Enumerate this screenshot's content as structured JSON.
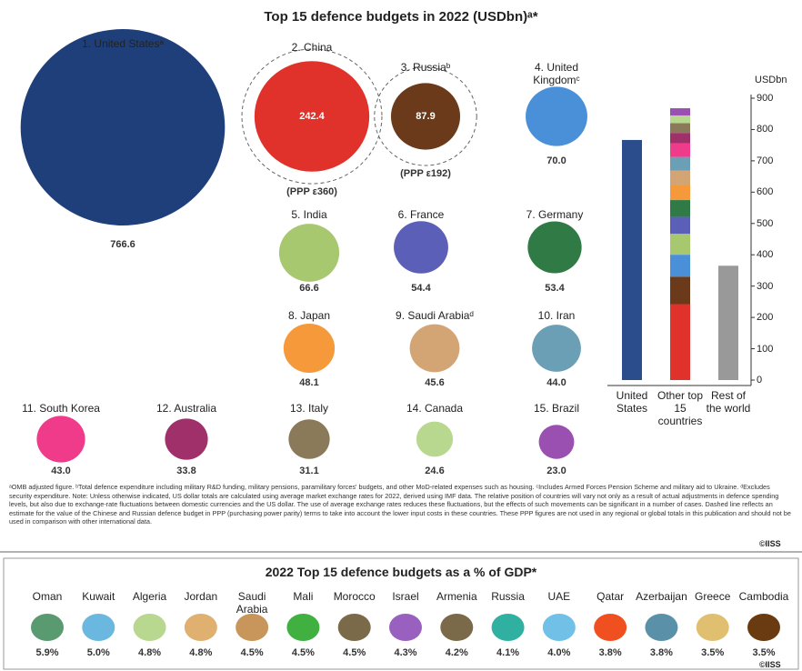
{
  "chart_data": [
    {
      "type": "bubble",
      "title": "Top 15 defence budgets in 2022 (USDbn)ᵃ*",
      "categories": [
        "1. United Statesᵃ",
        "2. China",
        "3. Russiaᵇ",
        "4. United Kingdomᶜ",
        "5. India",
        "6. France",
        "7. Germany",
        "8. Japan",
        "9. Saudi Arabiaᵈ",
        "10. Iran",
        "11. South Korea",
        "12. Australia",
        "13. Italy",
        "14. Canada",
        "15. Brazil"
      ],
      "values": [
        766.6,
        242.4,
        87.9,
        70.0,
        66.6,
        54.4,
        53.4,
        48.1,
        45.6,
        44.0,
        43.0,
        33.8,
        31.1,
        24.6,
        23.0
      ],
      "value_labels": [
        "766.6",
        "242.4",
        "87.9",
        "70.0",
        "66.6",
        "54.4",
        "53.4",
        "48.1",
        "45.6",
        "44.0",
        "43.0",
        "33.8",
        "31.1",
        "24.6",
        "23.0"
      ],
      "colors": [
        "#1f3f7a",
        "#e0322a",
        "#6b3a1a",
        "#4a90d9",
        "#a8c870",
        "#5b5fb8",
        "#2f7a45",
        "#f5993a",
        "#d4a574",
        "#6a9fb5",
        "#f03a8a",
        "#a0306a",
        "#8a7a5a",
        "#b8d890",
        "#9a50b0"
      ],
      "ppp_values": [
        360,
        192
      ],
      "ppp_labels": [
        "(PPP ε360)",
        "(PPP ε192)"
      ]
    },
    {
      "type": "stacked-bar",
      "categories": [
        "United States",
        "Other top 15 countries",
        "Rest of the world"
      ],
      "values": [
        766.6,
        null,
        365
      ],
      "colors": [
        "#2b4d8c",
        null,
        "#999999"
      ],
      "ylabel": "USDbn",
      "ylim": [
        0,
        900
      ],
      "yticks": [
        0,
        100,
        200,
        300,
        400,
        500,
        600,
        700,
        800,
        900
      ]
    },
    {
      "type": "dot",
      "title": "2022 Top 15 defence budgets as a % of GDP*",
      "categories": [
        "Oman",
        "Kuwait",
        "Algeria",
        "Jordan",
        "Saudi Arabia",
        "Mali",
        "Morocco",
        "Israel",
        "Armenia",
        "Russia",
        "UAE",
        "Qatar",
        "Azerbaijan",
        "Greece",
        "Cambodia"
      ],
      "values": [
        5.9,
        5.0,
        4.8,
        4.8,
        4.5,
        4.5,
        4.5,
        4.3,
        4.2,
        4.1,
        4.0,
        3.8,
        3.8,
        3.5,
        3.5
      ],
      "value_labels": [
        "5.9%",
        "5.0%",
        "4.8%",
        "4.8%",
        "4.5%",
        "4.5%",
        "4.5%",
        "4.3%",
        "4.2%",
        "4.1%",
        "4.0%",
        "3.8%",
        "3.8%",
        "3.5%",
        "3.5%"
      ],
      "colors": [
        "#5a9a70",
        "#6ab8e0",
        "#b8d890",
        "#e0b070",
        "#c8955a",
        "#40b040",
        "#7a6a4a",
        "#9a60c0",
        "#7a6a4a",
        "#30b0a0",
        "#70c0e8",
        "#f05020",
        "#5a90a8",
        "#e0c070",
        "#6a3a10"
      ]
    }
  ],
  "footnote": "ᵃOMB adjusted figure. ᵇTotal defence expenditure including military R&D funding, military pensions, paramilitary forces' budgets, and other MoD-related expenses such as housing. ᶜIncludes Armed Forces Pension Scheme and military aid to Ukraine. ᵈExcludes security expenditure. Note: Unless otherwise indicated, US dollar totals are calculated using average market exchange rates for 2022, derived using IMF data. The relative position of countries will vary not only as a result of actual adjustments in defence spending levels, but also due to exchange-rate fluctuations between domestic currencies and the US dollar. The use of average exchange rates reduces these fluctuations, but the effects of such movements can be significant in a number of cases. Dashed line reflects an estimate for the value of the Chinese and Russian defence budget in PPP (purchasing power parity) terms to take into account the lower input costs in these countries. These PPP figures are not used in any regional or global totals in this publication and should not be used in comparison with other international data.",
  "copyright": "©IISS"
}
